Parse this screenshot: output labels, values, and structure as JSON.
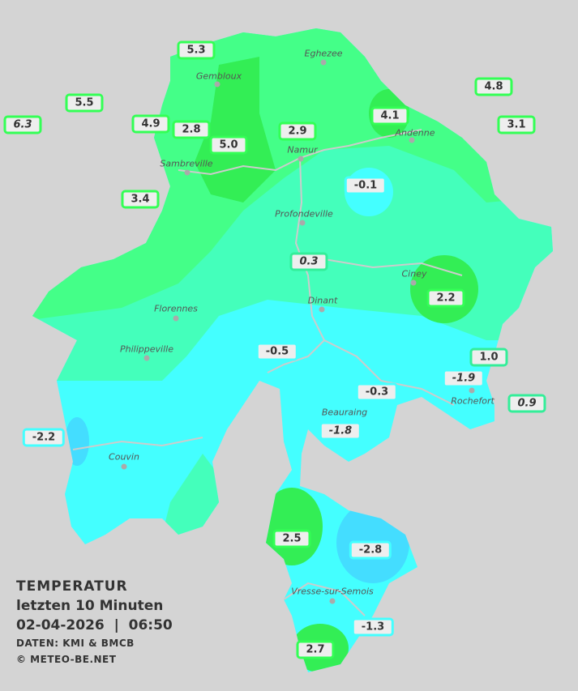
{
  "legend": {
    "title": "TEMPERATUR",
    "subtitle": "letzten 10 Minuten",
    "datetime": "02-04-2026  |  06:50",
    "source": "DATEN: KMI & BMCB",
    "copyright": "© METEO-BE.NET"
  },
  "colors": {
    "background": "#d4d4d4",
    "warm_green": "#33ee55",
    "green": "#44ff88",
    "teal": "#44ffbb",
    "cyan": "#44ffff",
    "blue": "#44ddff"
  },
  "towns": [
    "Eghezee",
    "Gembloux",
    "Sambreville",
    "Namur",
    "Andenne",
    "Profondeville",
    "Ciney",
    "Dinant",
    "Florennes",
    "Philippeville",
    "Rochefort",
    "Beauraing",
    "Couvin",
    "Vresse-sur-Semois"
  ],
  "stations": [
    "5.3",
    "4.8",
    "5.5",
    "6.3",
    "4.9",
    "2.8",
    "5.0",
    "2.9",
    "4.1",
    "3.1",
    "3.4",
    "-0.1",
    "0.3",
    "2.2",
    "-0.5",
    "1.0",
    "-1.9",
    "-0.3",
    "0.9",
    "-1.8",
    "-2.2",
    "2.5",
    "-2.8",
    "-1.3",
    "2.7"
  ]
}
